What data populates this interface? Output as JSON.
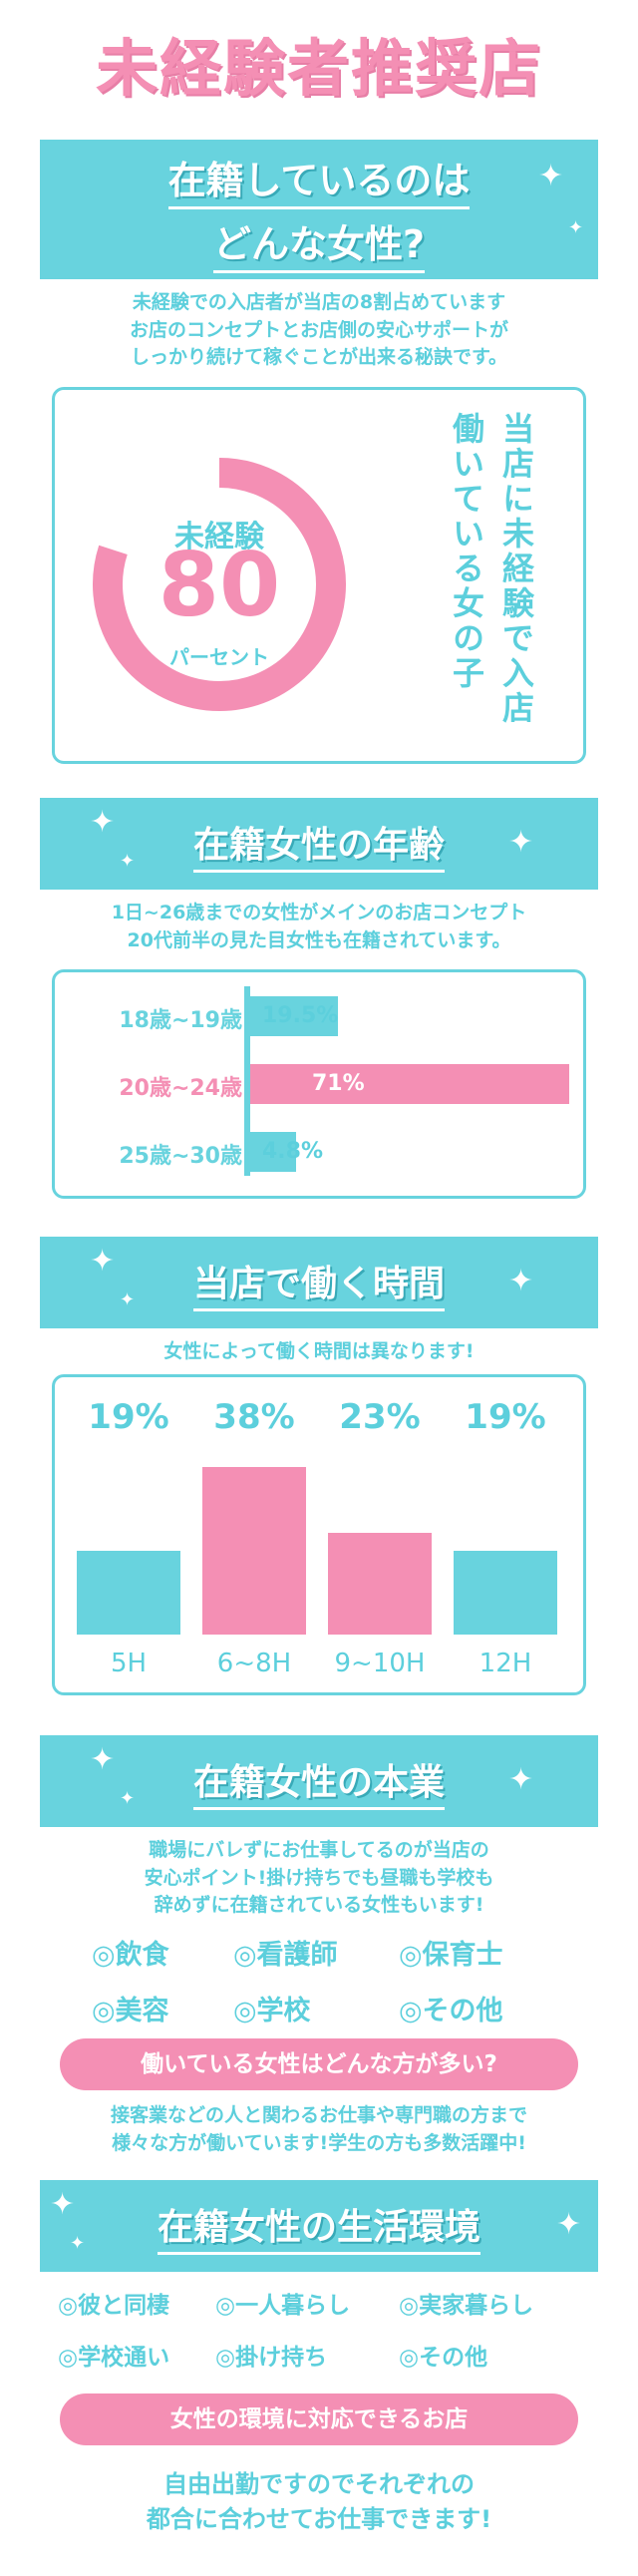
{
  "page_title": "未経験者推奨店",
  "section1": {
    "title_line1": "在籍しているのは",
    "title_line2": "どんな女性?",
    "desc": [
      "未経験での入店者が当店の8割占めています",
      "お店のコンセプトとお店側の安心サポートが",
      "しっかり続けて稼ぐことが出来る秘訣です。"
    ],
    "donut": {
      "value": 80,
      "label_top": "未経験",
      "number": "80",
      "label_bottom": "パーセント"
    },
    "vertical_caption_1": "当店に未経験で入店",
    "vertical_caption_2": "働いている女の子"
  },
  "section2": {
    "title": "在籍女性の年齢",
    "desc": [
      "1日~26歳までの女性がメインのお店コンセプト",
      "20代前半の見た目女性も在籍されています。"
    ],
    "chart_data": {
      "type": "bar",
      "orientation": "horizontal",
      "categories": [
        "18歳~19歳",
        "20歳~24歳",
        "25歳~30歳"
      ],
      "values": [
        19.5,
        71,
        4.8
      ],
      "value_labels": [
        "19.5%",
        "71%",
        "4.8%"
      ],
      "colors": [
        "#68d3de",
        "#f48fb4",
        "#68d3de"
      ]
    }
  },
  "section3": {
    "title": "当店で働く時間",
    "desc": [
      "女性によって働く時間は異なります!"
    ],
    "chart_data": {
      "type": "bar",
      "categories": [
        "5H",
        "6~8H",
        "9~10H",
        "12H"
      ],
      "values": [
        19,
        38,
        23,
        19
      ],
      "value_labels": [
        "19%",
        "38%",
        "23%",
        "19%"
      ],
      "colors": [
        "#68d3de",
        "#f48fb4",
        "#f48fb4",
        "#68d3de"
      ]
    }
  },
  "section4": {
    "title": "在籍女性の本業",
    "desc": [
      "職場にバレずにお仕事してるのが当店の",
      "安心ポイント!掛け持ちでも昼職も学校も",
      "辞めずに在籍されている女性もいます!"
    ],
    "jobs": [
      "◎飲食",
      "◎看護師",
      "◎保育士",
      "◎美容",
      "◎学校",
      "◎その他"
    ],
    "pill": "働いている女性はどんな方が多い?",
    "pill_desc": [
      "接客業などの人と関わるお仕事や専門職の方まで",
      "様々な方が働いています!学生の方も多数活躍中!"
    ]
  },
  "section5": {
    "title": "在籍女性の生活環境",
    "environments": [
      "◎彼と同棲",
      "◎一人暮らし",
      "◎実家暮らし",
      "◎学校通い",
      "◎掛け持ち",
      "◎その他"
    ],
    "pill": "女性の環境に対応できるお店",
    "closing": [
      "自由出勤ですのでそれぞれの",
      "都合に合わせてお仕事できます!"
    ]
  }
}
